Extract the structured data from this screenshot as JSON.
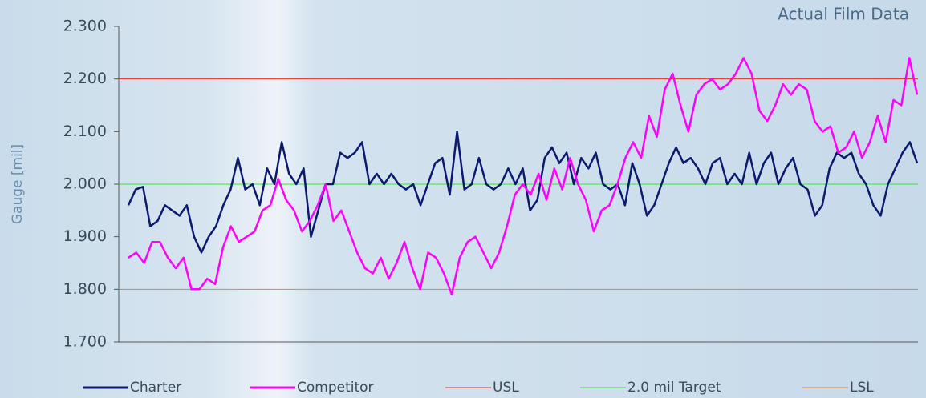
{
  "chart_data": {
    "type": "line",
    "title": "Actual Film Data",
    "y_label": "Gauge [mil]",
    "ylim": [
      1.7,
      2.3
    ],
    "yticks": [
      {
        "value": 1.7,
        "label": "1.700"
      },
      {
        "value": 1.8,
        "label": "1.800"
      },
      {
        "value": 1.9,
        "label": "1.900"
      },
      {
        "value": 2.0,
        "label": "2.000"
      },
      {
        "value": 2.1,
        "label": "2.100"
      },
      {
        "value": 2.2,
        "label": "2.200"
      },
      {
        "value": 2.3,
        "label": "2.300"
      }
    ],
    "series": [
      {
        "name": "Charter",
        "color": "#0b1a6e",
        "values": [
          1.96,
          1.99,
          1.995,
          1.92,
          1.93,
          1.96,
          1.95,
          1.94,
          1.96,
          1.9,
          1.87,
          1.9,
          1.92,
          1.96,
          1.99,
          2.05,
          1.99,
          2.0,
          1.96,
          2.03,
          2.0,
          2.08,
          2.02,
          2.0,
          2.03,
          1.9,
          1.95,
          2.0,
          2.0,
          2.06,
          2.05,
          2.06,
          2.08,
          2.0,
          2.02,
          2.0,
          2.02,
          2.0,
          1.99,
          2.0,
          1.96,
          2.0,
          2.04,
          2.05,
          1.98,
          2.1,
          1.99,
          2.0,
          2.05,
          2.0,
          1.99,
          2.0,
          2.03,
          2.0,
          2.03,
          1.95,
          1.97,
          2.05,
          2.07,
          2.04,
          2.06,
          2.0,
          2.05,
          2.03,
          2.06,
          2.0,
          1.99,
          2.0,
          1.96,
          2.04,
          2.0,
          1.94,
          1.96,
          2.0,
          2.04,
          2.07,
          2.04,
          2.05,
          2.03,
          2.0,
          2.04,
          2.05,
          2.0,
          2.02,
          2.0,
          2.06,
          2.0,
          2.04,
          2.06,
          2.0,
          2.03,
          2.05,
          2.0,
          1.99,
          1.94,
          1.96,
          2.03,
          2.06,
          2.05,
          2.06,
          2.02,
          2.0,
          1.96,
          1.94,
          2.0,
          2.03,
          2.06,
          2.08,
          2.04
        ]
      },
      {
        "name": "Competitor",
        "color": "#ff00ff",
        "values": [
          1.86,
          1.87,
          1.85,
          1.89,
          1.89,
          1.86,
          1.84,
          1.86,
          1.8,
          1.8,
          1.82,
          1.81,
          1.88,
          1.92,
          1.89,
          1.9,
          1.91,
          1.95,
          1.96,
          2.01,
          1.97,
          1.95,
          1.91,
          1.93,
          1.96,
          2.0,
          1.93,
          1.95,
          1.91,
          1.87,
          1.84,
          1.83,
          1.86,
          1.82,
          1.85,
          1.89,
          1.84,
          1.8,
          1.87,
          1.86,
          1.83,
          1.79,
          1.86,
          1.89,
          1.9,
          1.87,
          1.84,
          1.87,
          1.92,
          1.98,
          2.0,
          1.98,
          2.02,
          1.97,
          2.03,
          1.99,
          2.05,
          2.0,
          1.97,
          1.91,
          1.95,
          1.96,
          2.0,
          2.05,
          2.08,
          2.05,
          2.13,
          2.09,
          2.18,
          2.21,
          2.15,
          2.1,
          2.17,
          2.19,
          2.2,
          2.18,
          2.19,
          2.21,
          2.24,
          2.21,
          2.14,
          2.12,
          2.15,
          2.19,
          2.17,
          2.19,
          2.18,
          2.12,
          2.1,
          2.11,
          2.06,
          2.07,
          2.1,
          2.05,
          2.08,
          2.13,
          2.08,
          2.16,
          2.15,
          2.24,
          2.17
        ]
      }
    ],
    "reference_lines": [
      {
        "name": "USL",
        "value": 2.2,
        "color": "#e53020"
      },
      {
        "name": "2.0 mil Target",
        "value": 2.0,
        "color": "#40e040"
      },
      {
        "name": "LSL",
        "value": 1.8,
        "color": "#f08020"
      }
    ]
  }
}
